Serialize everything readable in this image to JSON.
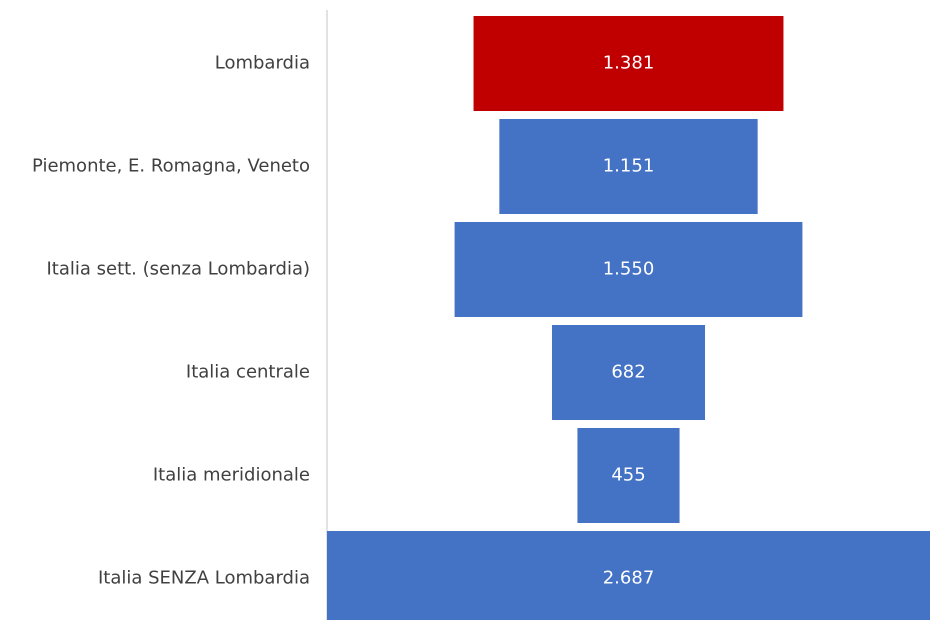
{
  "chart_data": {
    "type": "funnel",
    "categories": [
      "Lombardia",
      "Piemonte, E. Romagna, Veneto",
      "Italia sett. (senza Lombardia)",
      "Italia centrale",
      "Italia meridionale",
      "Italia SENZA Lombardia"
    ],
    "values": [
      1381,
      1151,
      1550,
      682,
      455,
      2687
    ],
    "value_labels": [
      "1.381",
      "1.151",
      "1.550",
      "682",
      "455",
      "2.687"
    ],
    "colors": [
      "#c00000",
      "#4472c4",
      "#4472c4",
      "#4472c4",
      "#4472c4",
      "#4472c4"
    ]
  }
}
